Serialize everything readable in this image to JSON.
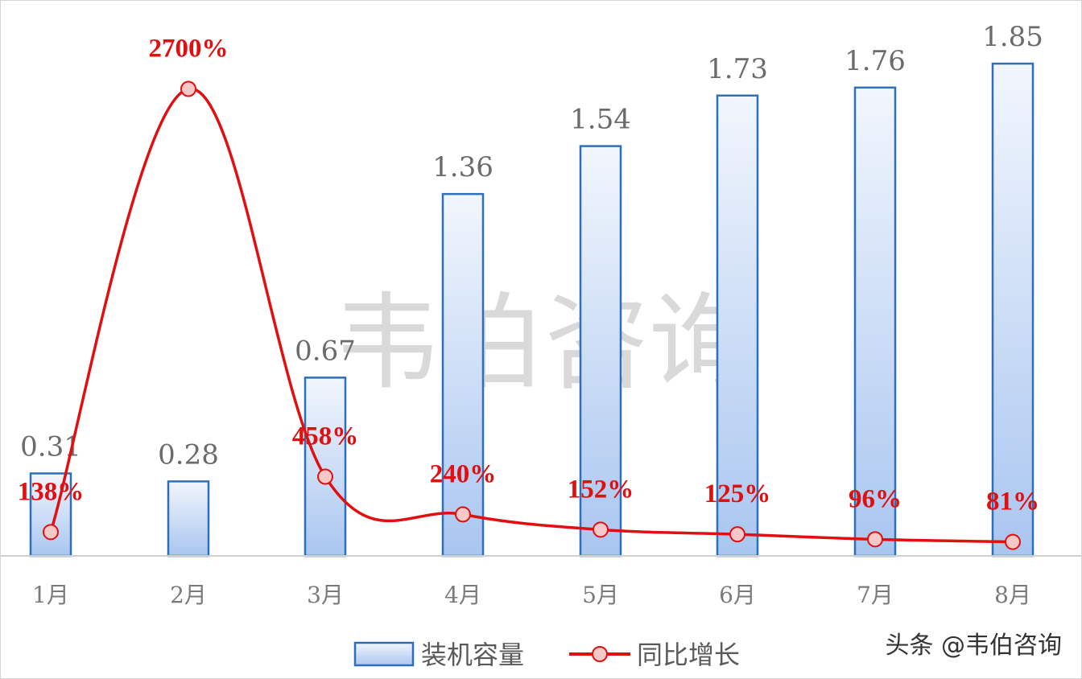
{
  "chart_data": {
    "type": "bar",
    "categories": [
      "1月",
      "2月",
      "3月",
      "4月",
      "5月",
      "6月",
      "7月",
      "8月"
    ],
    "series": [
      {
        "name": "装机容量",
        "type": "bar",
        "values": [
          0.31,
          0.28,
          0.67,
          1.36,
          1.54,
          1.73,
          1.76,
          1.85
        ],
        "labels": [
          "0.31",
          "0.28",
          "0.67",
          "1.36",
          "1.54",
          "1.73",
          "1.76",
          "1.85"
        ],
        "color": "#2e6fba"
      },
      {
        "name": "同比增长",
        "type": "line",
        "values": [
          138,
          2700,
          458,
          240,
          152,
          125,
          96,
          81
        ],
        "labels": [
          "138%",
          "2700%",
          "458%",
          "240%",
          "152%",
          "125%",
          "96%",
          "81%"
        ],
        "color": "#e01010"
      }
    ],
    "ylim": [
      0,
      1.95
    ],
    "y2lim": [
      0,
      3000
    ],
    "grid": false,
    "legend_position": "bottom"
  },
  "watermark": "韦伯咨询",
  "footer_mark": "头条 @韦伯咨询"
}
